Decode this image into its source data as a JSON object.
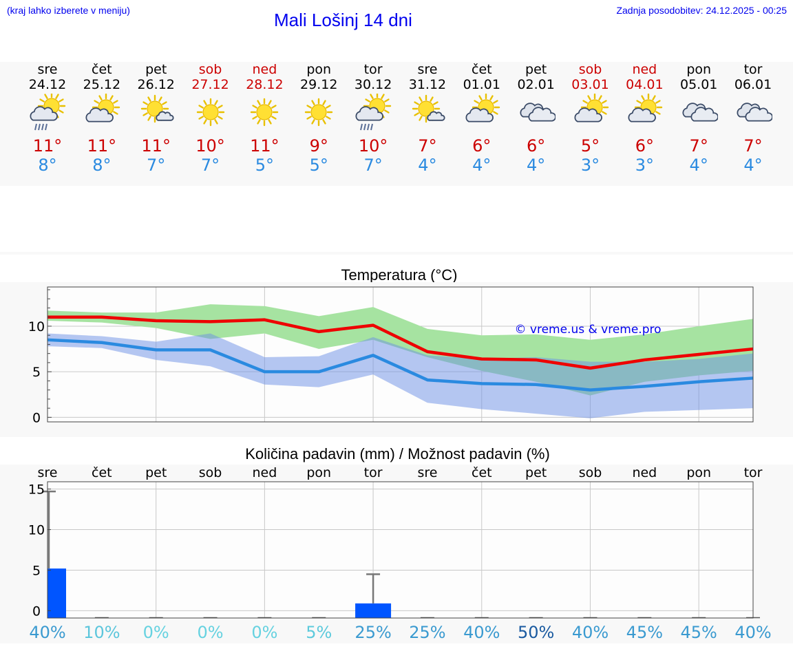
{
  "header": {
    "note": "(kraj lahko izberete v meniju)",
    "title": "Mali Lošinj 14 dni",
    "updated": "Zadnja posodobitev: 24.12.2025 - 00:25"
  },
  "colors": {
    "link": "#0000ee",
    "weekend": "#cc0000",
    "max_temp": "#cc0000",
    "min_temp": "#2a8ae0",
    "max_line": "#ee0000",
    "min_line": "#2a8ae0",
    "max_band": "#a6e3a1",
    "min_band": "#aec6f4",
    "overlap_band": "#78c29e",
    "bar": "#0055ff"
  },
  "days": [
    {
      "name": "sre",
      "date": "24.12",
      "max": "11°",
      "min": "8°",
      "weekend": false,
      "icon": "sun-cloud-rain-icon"
    },
    {
      "name": "čet",
      "date": "25.12",
      "max": "11°",
      "min": "8°",
      "weekend": false,
      "icon": "sun-cloud-icon"
    },
    {
      "name": "pet",
      "date": "26.12",
      "max": "11°",
      "min": "7°",
      "weekend": false,
      "icon": "sun-small-cloud-icon"
    },
    {
      "name": "sob",
      "date": "27.12",
      "max": "10°",
      "min": "7°",
      "weekend": true,
      "icon": "sun-icon"
    },
    {
      "name": "ned",
      "date": "28.12",
      "max": "11°",
      "min": "5°",
      "weekend": true,
      "icon": "sun-icon"
    },
    {
      "name": "pon",
      "date": "29.12",
      "max": "9°",
      "min": "5°",
      "weekend": false,
      "icon": "sun-icon"
    },
    {
      "name": "tor",
      "date": "30.12",
      "max": "10°",
      "min": "7°",
      "weekend": false,
      "icon": "sun-cloud-rain-icon"
    },
    {
      "name": "sre",
      "date": "31.12",
      "max": "7°",
      "min": "4°",
      "weekend": false,
      "icon": "sun-small-cloud-icon"
    },
    {
      "name": "čet",
      "date": "01.01",
      "max": "6°",
      "min": "4°",
      "weekend": false,
      "icon": "sun-cloud-icon"
    },
    {
      "name": "pet",
      "date": "02.01",
      "max": "6°",
      "min": "4°",
      "weekend": false,
      "icon": "clouds-icon"
    },
    {
      "name": "sob",
      "date": "03.01",
      "max": "5°",
      "min": "3°",
      "weekend": true,
      "icon": "sun-cloud-icon"
    },
    {
      "name": "ned",
      "date": "04.01",
      "max": "6°",
      "min": "3°",
      "weekend": true,
      "icon": "sun-cloud-icon"
    },
    {
      "name": "pon",
      "date": "05.01",
      "max": "7°",
      "min": "4°",
      "weekend": false,
      "icon": "clouds-icon"
    },
    {
      "name": "tor",
      "date": "06.01",
      "max": "7°",
      "min": "4°",
      "weekend": false,
      "icon": "clouds-icon"
    }
  ],
  "chart_data": [
    {
      "type": "line",
      "title": "Temperatura (°C)",
      "watermark": "© vreme.us & vreme.pro",
      "ylim": [
        -0.5,
        14.3
      ],
      "yticks": [
        0,
        5,
        10
      ],
      "x": [
        0,
        1,
        2,
        3,
        4,
        5,
        6,
        7,
        8,
        9,
        10,
        11,
        12,
        13
      ],
      "series": [
        {
          "name": "max",
          "values": [
            11.0,
            11.0,
            10.6,
            10.5,
            10.7,
            9.4,
            10.1,
            7.2,
            6.4,
            6.3,
            5.4,
            6.3,
            6.9,
            7.5
          ]
        },
        {
          "name": "min",
          "values": [
            8.5,
            8.2,
            7.4,
            7.4,
            5.0,
            5.0,
            6.8,
            4.1,
            3.7,
            3.6,
            3.0,
            3.4,
            3.9,
            4.3
          ]
        }
      ],
      "bands": [
        {
          "name": "max-range",
          "upper": [
            11.7,
            11.5,
            11.5,
            12.4,
            12.2,
            11.1,
            12.1,
            9.7,
            9.0,
            9.1,
            8.5,
            9.1,
            10.0,
            10.8
          ],
          "lower": [
            10.6,
            10.4,
            9.8,
            8.6,
            9.2,
            7.5,
            8.5,
            6.6,
            5.1,
            3.9,
            2.4,
            3.9,
            4.6,
            5.1
          ]
        },
        {
          "name": "min-range",
          "upper": [
            9.2,
            8.9,
            8.3,
            9.2,
            6.6,
            6.7,
            8.8,
            6.8,
            6.4,
            6.6,
            6.1,
            6.1,
            6.4,
            7.0
          ],
          "lower": [
            7.8,
            7.6,
            6.3,
            5.6,
            3.6,
            3.3,
            4.7,
            1.6,
            0.9,
            0.4,
            -0.1,
            0.6,
            0.8,
            1.0
          ]
        }
      ]
    },
    {
      "type": "bar",
      "title": "Količina padavin (mm) / Možnost padavin (%)",
      "categories": [
        "sre",
        "čet",
        "pet",
        "sob",
        "ned",
        "pon",
        "tor",
        "sre",
        "čet",
        "pet",
        "sob",
        "ned",
        "pon",
        "tor"
      ],
      "ylim": [
        -0.9,
        15.9
      ],
      "yticks": [
        0,
        5,
        10,
        15
      ],
      "values": [
        5.2,
        0,
        0,
        0,
        0,
        0,
        0.9,
        0,
        0,
        0,
        0,
        0,
        0,
        0
      ],
      "error_max": [
        14.7,
        0,
        0,
        0,
        0,
        0,
        4.5,
        0,
        0,
        0,
        0,
        0,
        0,
        0
      ],
      "probability": [
        "40%",
        "10%",
        "0%",
        "0%",
        "0%",
        "5%",
        "25%",
        "25%",
        "40%",
        "50%",
        "40%",
        "45%",
        "45%",
        "40%"
      ],
      "probability_colors": [
        "#3a9ad0",
        "#5cc6dc",
        "#66d2e0",
        "#66d2e0",
        "#66d2e0",
        "#5ccadc",
        "#3a9ad0",
        "#3a9ad0",
        "#3a9ad0",
        "#1a5aa0",
        "#3a9ad0",
        "#3a9ad0",
        "#3a9ad0",
        "#3a9ad0"
      ]
    }
  ]
}
